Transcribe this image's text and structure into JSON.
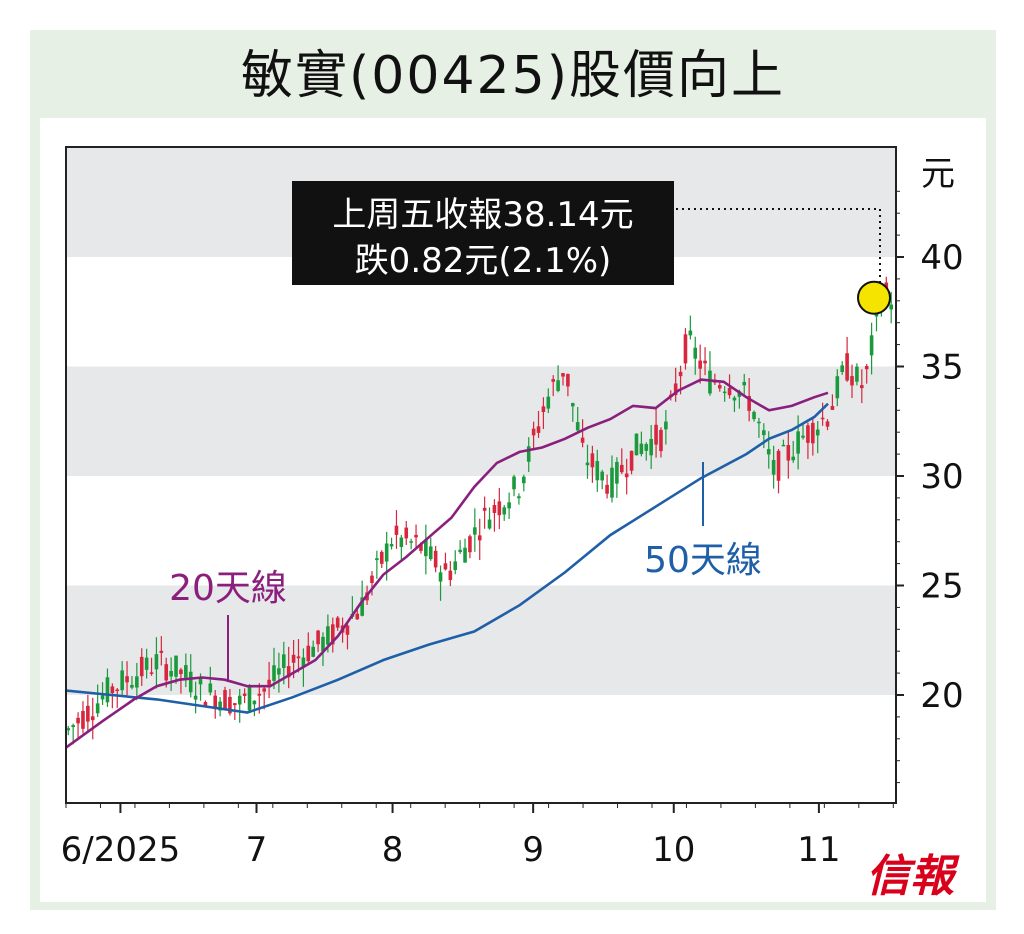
{
  "title": "敏實(00425)股價向上",
  "brand": "信報",
  "colors": {
    "up": "#d7263d",
    "down": "#1a9a3c",
    "ma20": "#8a1f7d",
    "ma50": "#1f5fa8",
    "band": "#e6e8e9",
    "highlight": "#f5e400"
  },
  "callout": {
    "line1": "上周五收報38.14元",
    "line2": "跌0.82元(2.1%)"
  },
  "chart_data": {
    "type": "line",
    "title": "敏實(00425)股價向上",
    "ylabel": "元",
    "ylim": [
      15,
      45
    ],
    "yticks": [
      20,
      25,
      30,
      35,
      40
    ],
    "xticklabels": [
      "6/2025",
      "7",
      "8",
      "9",
      "10",
      "11"
    ],
    "xtick_dates": [
      "2025-06-02",
      "2025-07-02",
      "2025-08-01",
      "2025-09-01",
      "2025-10-02",
      "2025-11-03"
    ],
    "grid": "alternating horizontal bands",
    "series": [
      {
        "name": "20天線",
        "values": [
          [
            0,
            17.6
          ],
          [
            8,
            18.8
          ],
          [
            15,
            19.8
          ],
          [
            20,
            20.4
          ],
          [
            25,
            20.7
          ],
          [
            30,
            20.8
          ],
          [
            35,
            20.7
          ],
          [
            40,
            20.4
          ],
          [
            45,
            20.4
          ],
          [
            50,
            21.0
          ],
          [
            55,
            21.6
          ],
          [
            60,
            22.7
          ],
          [
            65,
            24.2
          ],
          [
            70,
            25.5
          ],
          [
            75,
            26.3
          ],
          [
            80,
            27.2
          ],
          [
            85,
            28.1
          ],
          [
            90,
            29.5
          ],
          [
            95,
            30.6
          ],
          [
            100,
            31.1
          ],
          [
            105,
            31.3
          ],
          [
            110,
            31.7
          ],
          [
            115,
            32.2
          ],
          [
            120,
            32.6
          ],
          [
            125,
            33.2
          ],
          [
            130,
            33.1
          ],
          [
            135,
            33.9
          ],
          [
            140,
            34.4
          ],
          [
            145,
            34.3
          ],
          [
            150,
            33.6
          ],
          [
            155,
            33.0
          ],
          [
            160,
            33.2
          ],
          [
            165,
            33.6
          ],
          [
            168,
            33.8
          ]
        ]
      },
      {
        "name": "50天線",
        "values": [
          [
            0,
            20.2
          ],
          [
            10,
            20.0
          ],
          [
            20,
            19.8
          ],
          [
            30,
            19.5
          ],
          [
            40,
            19.2
          ],
          [
            50,
            19.9
          ],
          [
            60,
            20.7
          ],
          [
            70,
            21.6
          ],
          [
            80,
            22.3
          ],
          [
            90,
            22.9
          ],
          [
            100,
            24.1
          ],
          [
            110,
            25.6
          ],
          [
            120,
            27.3
          ],
          [
            130,
            28.6
          ],
          [
            140,
            29.9
          ],
          [
            150,
            31.0
          ],
          [
            155,
            31.7
          ],
          [
            160,
            32.1
          ],
          [
            165,
            32.7
          ],
          [
            168,
            33.3
          ]
        ]
      }
    ],
    "annotations": [
      "上周五收報38.14元",
      "跌0.82元(2.1%)",
      "20天線",
      "50天線"
    ],
    "last_close": 38.14
  }
}
